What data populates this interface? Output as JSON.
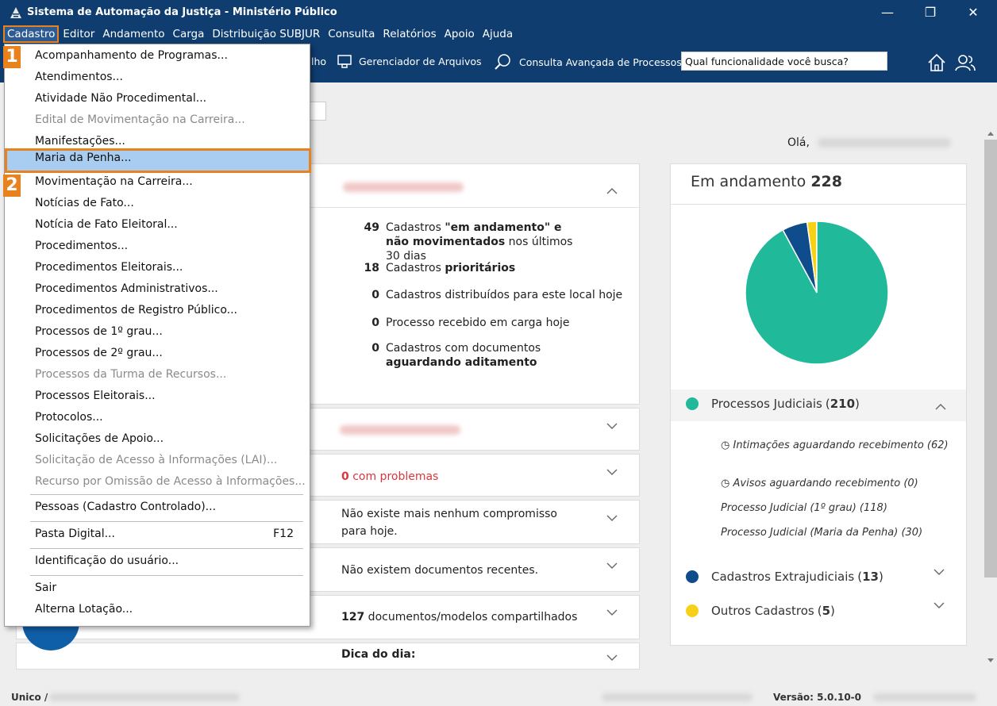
{
  "window": {
    "title": "Sistema de Automação da Justiça - Ministério Público",
    "minimize_glyph": "—",
    "restore_glyph": "❐",
    "close_glyph": "✕"
  },
  "menubar": {
    "items": [
      "Cadastro",
      "Editor",
      "Andamento",
      "Carga",
      "Distribuição SUBJUR",
      "Consulta",
      "Relatórios",
      "Apoio",
      "Ajuda"
    ]
  },
  "toolbar": {
    "partial_label": "lho",
    "file_manager": "Gerenciador de Arquivos",
    "advanced_search": "Consulta Avançada de Processos",
    "search_value": "Qual funcionalidade você busca?"
  },
  "greeting": "Olá,",
  "dashboard": {
    "stats": [
      {
        "num": "49",
        "pre": "Cadastros ",
        "bold": "\"em andamento\" e não movimentados",
        "post": " nos últimos 30 dias"
      },
      {
        "num": "18",
        "pre": "Cadastros ",
        "bold": "prioritários",
        "post": ""
      },
      {
        "num": "0",
        "pre": "Cadastros distribuídos para este local hoje",
        "bold": "",
        "post": ""
      },
      {
        "num": "0",
        "pre": "Processo recebido em carga hoje",
        "bold": "",
        "post": ""
      },
      {
        "num": "0",
        "pre": "Cadastros com documentos ",
        "bold": "aguardando aditamento",
        "post": ""
      }
    ],
    "problems_count": "0",
    "problems_label": " com problemas",
    "commitments": "Não existe mais nenhum compromisso para hoje.",
    "recent_docs": "Não existem documentos recentes.",
    "shared_count": "127",
    "shared_label": " documentos/modelos compartilhados",
    "tip_title": "Dica do dia:"
  },
  "in_progress": {
    "label": "Em andamento",
    "total": "228",
    "legend": [
      {
        "label": "Processos Judiciais",
        "count": "210",
        "color": "#20b999"
      },
      {
        "label": "Cadastros Extrajudiciais",
        "count": "13",
        "color": "#0f4c8c"
      },
      {
        "label": "Outros Cadastros",
        "count": "5",
        "color": "#f7d117"
      }
    ],
    "sub_items": [
      "Intimações aguardando recebimento (62)",
      "Avisos aguardando recebimento (0)",
      "Processo Judicial (1º grau) (118)",
      "Processo Judicial (Maria da Penha) (30)"
    ]
  },
  "chart_data": {
    "type": "pie",
    "categories": [
      "Processos Judiciais",
      "Cadastros Extrajudiciais",
      "Outros Cadastros"
    ],
    "values": [
      210,
      13,
      5
    ],
    "colors": [
      "#20b999",
      "#0f4c8c",
      "#f7d117"
    ],
    "title": "Em andamento 228"
  },
  "dropdown": {
    "items": [
      {
        "label": "Acompanhamento de Programas...",
        "state": "enabled"
      },
      {
        "label": "Atendimentos...",
        "state": "enabled"
      },
      {
        "label": "Atividade Não Procedimental...",
        "state": "enabled"
      },
      {
        "label": "Edital de Movimentação na Carreira...",
        "state": "disabled"
      },
      {
        "label": "Manifestações...",
        "state": "enabled"
      },
      {
        "label": "Maria da Penha...",
        "state": "highlighted"
      },
      {
        "label": "Movimentação na Carreira...",
        "state": "enabled"
      },
      {
        "label": "Notícias de Fato...",
        "state": "enabled"
      },
      {
        "label": "Notícia de Fato Eleitoral...",
        "state": "enabled"
      },
      {
        "label": "Procedimentos...",
        "state": "enabled"
      },
      {
        "label": "Procedimentos Eleitorais...",
        "state": "enabled"
      },
      {
        "label": "Procedimentos Administrativos...",
        "state": "enabled"
      },
      {
        "label": "Procedimentos de Registro Público...",
        "state": "enabled"
      },
      {
        "label": "Processos de 1º grau...",
        "state": "enabled"
      },
      {
        "label": "Processos de 2º grau...",
        "state": "enabled"
      },
      {
        "label": "Processos da Turma de Recursos...",
        "state": "disabled"
      },
      {
        "label": "Processos Eleitorais...",
        "state": "enabled"
      },
      {
        "label": "Protocolos...",
        "state": "enabled"
      },
      {
        "label": "Solicitações de Apoio...",
        "state": "enabled"
      },
      {
        "label": "Solicitação de Acesso à Informações (LAI)...",
        "state": "disabled"
      },
      {
        "label": "Recurso por Omissão de Acesso à Informações...",
        "state": "disabled"
      },
      {
        "label": "Pessoas (Cadastro Controlado)...",
        "state": "enabled"
      },
      {
        "label": "Pasta Digital...",
        "state": "enabled",
        "shortcut": "F12"
      },
      {
        "label": "Identificação do usuário...",
        "state": "enabled"
      },
      {
        "label": "Sair",
        "state": "enabled"
      },
      {
        "label": "Alterna Lotação...",
        "state": "enabled"
      }
    ]
  },
  "steps": [
    "1",
    "2"
  ],
  "statusbar": {
    "left": "Unico /",
    "version": "Versão: 5.0.10-0"
  }
}
